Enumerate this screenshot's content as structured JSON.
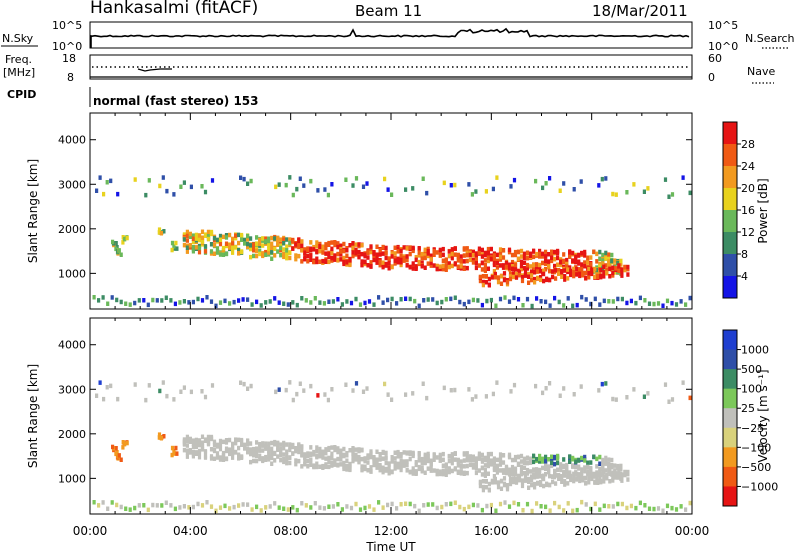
{
  "header": {
    "station": "Hankasalmi (fitACF)",
    "beam": "Beam 11",
    "date": "18/Mar/2011"
  },
  "nsky_panel": {
    "left_label": "N.Sky",
    "left_ticks": [
      "10^5",
      "10^0"
    ],
    "right_ticks": [
      "10^5",
      "10^0"
    ],
    "right_label": "N.Search"
  },
  "freq_panel": {
    "left_label_1": "Freq.",
    "left_label_2": "[MHz]",
    "left_ticks": [
      "18",
      "8"
    ],
    "right_ticks": [
      "60",
      "0"
    ],
    "right_label": "Nave"
  },
  "cpid": {
    "label": "CPID",
    "text": "normal (fast stereo) 153"
  },
  "colors": {
    "power": [
      "#1414e6",
      "#2f4fa8",
      "#3c8c64",
      "#6ab85a",
      "#e8d21e",
      "#f29a20",
      "#f05a14",
      "#e61414"
    ],
    "velocity": [
      "#e61414",
      "#f05a14",
      "#f29a20",
      "#d9d27c",
      "#c0c0bb",
      "#7cc85a",
      "#3c8c64",
      "#2f4fa8",
      "#1f3fd0"
    ],
    "ground_scatter": "#c0c0bb"
  },
  "chart_data": [
    {
      "type": "heatmap",
      "name": "power",
      "ylabel": "Slant Range [km]",
      "ylim": [
        200,
        4600
      ],
      "y_ticks": [
        "4000",
        "3000",
        "2000",
        "1000"
      ],
      "colorbar_label": "Power [dB]",
      "colorbar_ticks": [
        "28",
        "24",
        "20",
        "16",
        "12",
        "8",
        "4"
      ],
      "x_ticks": [
        "00:00",
        "04:00",
        "08:00",
        "12:00",
        "16:00",
        "20:00",
        "00:00"
      ],
      "xlabel": "Time UT"
    },
    {
      "type": "heatmap",
      "name": "velocity",
      "ylabel": "Slant Range [km]",
      "ylim": [
        200,
        4600
      ],
      "y_ticks": [
        "4000",
        "3000",
        "2000",
        "1000"
      ],
      "colorbar_label": "Velocity [m s⁻¹]",
      "colorbar_ticks": [
        "1000",
        "500",
        "100",
        "25",
        "−25",
        "−100",
        "−500",
        "−1000"
      ],
      "x_ticks": [
        "00:00",
        "04:00",
        "08:00",
        "12:00",
        "16:00",
        "20:00",
        "00:00"
      ],
      "xlabel": "Time UT"
    }
  ]
}
